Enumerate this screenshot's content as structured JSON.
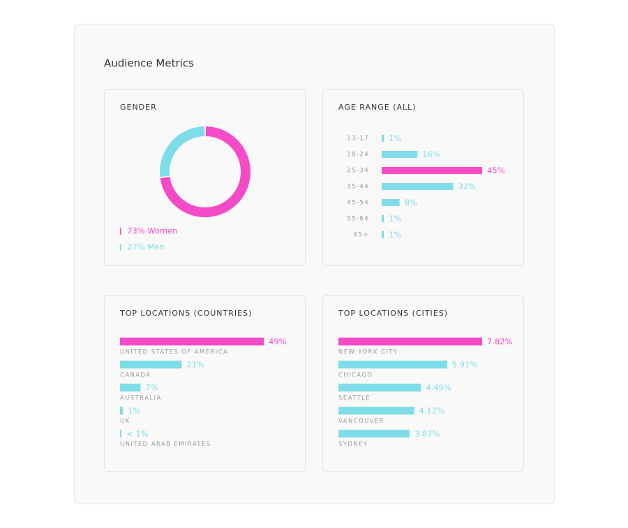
{
  "title": "Audience Metrics",
  "chart_data": [
    {
      "type": "donut",
      "title": "GENDER",
      "values": [
        73,
        27
      ],
      "value_labels": [
        "73% Women",
        "27% Men"
      ],
      "colors": [
        "#f54bc8",
        "#7fdde9"
      ]
    },
    {
      "type": "bar",
      "title": "AGE RANGE (ALL)",
      "category_labels": "left",
      "categories": [
        "13-17",
        "18-24",
        "25-34",
        "35-44",
        "45-54",
        "55-64",
        "65+"
      ],
      "values": [
        1,
        16,
        45,
        32,
        8,
        1,
        1
      ],
      "value_labels": [
        "1%",
        "16%",
        "45%",
        "32%",
        "8%",
        "1%",
        "1%"
      ],
      "colors": [
        "#7fdde9",
        "#7fdde9",
        "#f54bc8",
        "#7fdde9",
        "#7fdde9",
        "#7fdde9",
        "#7fdde9"
      ]
    },
    {
      "type": "bar",
      "title": "TOP LOCATIONS (COUNTRIES)",
      "category_labels": "below",
      "categories": [
        "UNITED STATES OF AMERICA",
        "CANADA",
        "AUSTRALIA",
        "UK",
        "UNITED ARAB EMIRATES"
      ],
      "values": [
        49,
        21,
        7,
        1,
        0.5
      ],
      "value_labels": [
        "49%",
        "21%",
        "7%",
        "1%",
        "< 1%"
      ],
      "colors": [
        "#f54bc8",
        "#7fdde9",
        "#7fdde9",
        "#7fdde9",
        "#7fdde9"
      ]
    },
    {
      "type": "bar",
      "title": "TOP LOCATIONS (CITIES)",
      "category_labels": "below",
      "categories": [
        "NEW YORK CITY",
        "CHICAGO",
        "SEATTLE",
        "VANCOUVER",
        "SYDNEY"
      ],
      "values": [
        7.82,
        5.91,
        4.49,
        4.12,
        3.87
      ],
      "value_labels": [
        "7.82%",
        "5.91%",
        "4.49%",
        "4.12%",
        "3.87%"
      ],
      "colors": [
        "#f54bc8",
        "#7fdde9",
        "#7fdde9",
        "#7fdde9",
        "#7fdde9"
      ]
    }
  ]
}
